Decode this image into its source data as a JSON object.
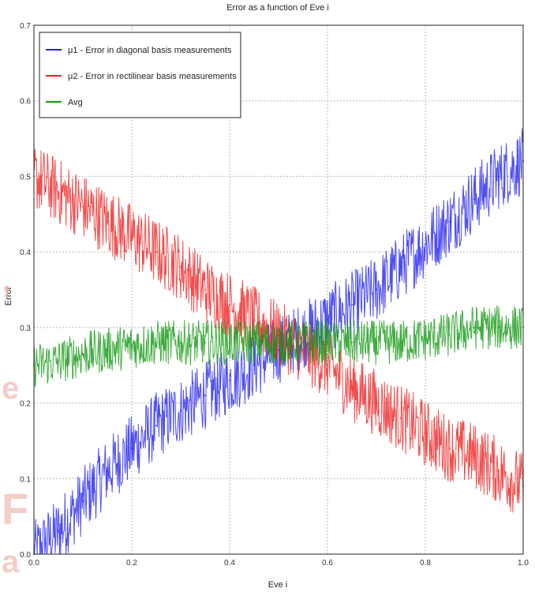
{
  "chart_data": {
    "type": "line",
    "title": "Error as a function of Eve i",
    "xlabel": "Eve i",
    "ylabel": "Error",
    "xlim": [
      0.0,
      1.0
    ],
    "ylim": [
      0.0,
      0.7
    ],
    "xticks": [
      "0.0",
      "0.2",
      "0.4",
      "0.6",
      "0.8",
      "1.0"
    ],
    "yticks": [
      "0.0",
      "0.1",
      "0.2",
      "0.3",
      "0.4",
      "0.5",
      "0.6",
      "0.7"
    ],
    "grid": true,
    "legend_position": "top-left",
    "x": [
      0.0,
      0.05,
      0.1,
      0.15,
      0.2,
      0.25,
      0.3,
      0.35,
      0.4,
      0.45,
      0.5,
      0.55,
      0.6,
      0.65,
      0.7,
      0.75,
      0.8,
      0.85,
      0.9,
      0.95,
      1.0
    ],
    "series": [
      {
        "name": "μ1 - Error in diagonal basis measurements",
        "color": "#2222ee",
        "values": [
          0.0,
          0.03,
          0.07,
          0.11,
          0.14,
          0.17,
          0.19,
          0.21,
          0.23,
          0.25,
          0.27,
          0.29,
          0.31,
          0.33,
          0.35,
          0.38,
          0.41,
          0.44,
          0.47,
          0.5,
          0.52
        ]
      },
      {
        "name": "μ2 - Error in rectilinear basis measurements",
        "color": "#ee2222",
        "values": [
          0.5,
          0.48,
          0.46,
          0.44,
          0.42,
          0.4,
          0.38,
          0.35,
          0.33,
          0.31,
          0.29,
          0.27,
          0.25,
          0.22,
          0.2,
          0.18,
          0.16,
          0.14,
          0.13,
          0.11,
          0.09
        ]
      },
      {
        "name": "Avg",
        "color": "#119911",
        "values": [
          0.25,
          0.255,
          0.265,
          0.27,
          0.275,
          0.28,
          0.28,
          0.28,
          0.28,
          0.28,
          0.28,
          0.28,
          0.28,
          0.28,
          0.28,
          0.28,
          0.285,
          0.29,
          0.3,
          0.3,
          0.3
        ]
      }
    ]
  }
}
